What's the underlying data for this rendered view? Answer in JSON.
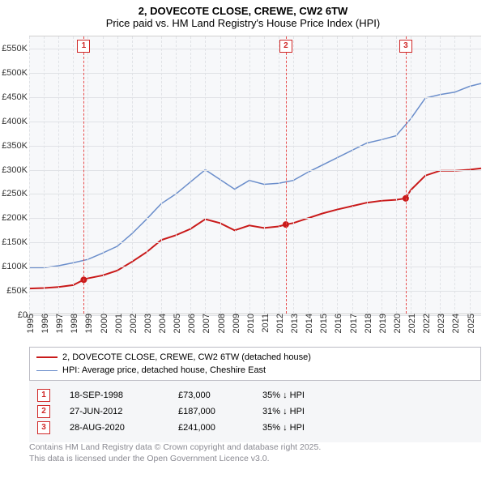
{
  "title_line1": "2, DOVECOTE CLOSE, CREWE, CW2 6TW",
  "title_line2": "Price paid vs. HM Land Registry's House Price Index (HPI)",
  "chart": {
    "type": "line",
    "background_color": "#f7f8fa",
    "grid_color": "#e0e2e6",
    "x_years": [
      1995,
      1996,
      1997,
      1998,
      1999,
      2000,
      2001,
      2002,
      2003,
      2004,
      2005,
      2006,
      2007,
      2008,
      2009,
      2010,
      2011,
      2012,
      2013,
      2014,
      2015,
      2016,
      2017,
      2018,
      2019,
      2020,
      2021,
      2022,
      2023,
      2024,
      2025
    ],
    "x_min": 1995,
    "x_max": 2025.8,
    "y_min": 0,
    "y_max": 575000,
    "y_ticks": [
      0,
      50000,
      100000,
      150000,
      200000,
      250000,
      300000,
      350000,
      400000,
      450000,
      500000,
      550000
    ],
    "y_tick_labels": [
      "£0",
      "£50K",
      "£100K",
      "£150K",
      "£200K",
      "£250K",
      "£300K",
      "£350K",
      "£400K",
      "£450K",
      "£500K",
      "£550K"
    ],
    "series": [
      {
        "name": "price_paid",
        "color": "#c91a1a",
        "width": 2,
        "points": [
          [
            1995,
            55000
          ],
          [
            1996,
            56000
          ],
          [
            1997,
            58000
          ],
          [
            1998,
            62000
          ],
          [
            1998.72,
            73000
          ],
          [
            1999,
            76000
          ],
          [
            2000,
            82000
          ],
          [
            2001,
            92000
          ],
          [
            2002,
            110000
          ],
          [
            2003,
            130000
          ],
          [
            2004,
            155000
          ],
          [
            2005,
            165000
          ],
          [
            2006,
            178000
          ],
          [
            2007,
            198000
          ],
          [
            2008,
            190000
          ],
          [
            2009,
            175000
          ],
          [
            2010,
            185000
          ],
          [
            2011,
            180000
          ],
          [
            2012,
            183000
          ],
          [
            2012.49,
            187000
          ],
          [
            2013,
            190000
          ],
          [
            2014,
            200000
          ],
          [
            2015,
            210000
          ],
          [
            2016,
            218000
          ],
          [
            2017,
            225000
          ],
          [
            2018,
            232000
          ],
          [
            2019,
            236000
          ],
          [
            2020,
            238000
          ],
          [
            2020.66,
            241000
          ],
          [
            2021,
            258000
          ],
          [
            2022,
            288000
          ],
          [
            2023,
            298000
          ],
          [
            2024,
            298000
          ],
          [
            2025,
            300000
          ],
          [
            2025.8,
            303000
          ]
        ]
      },
      {
        "name": "hpi",
        "color": "#6b8ecb",
        "width": 1.5,
        "points": [
          [
            1995,
            98000
          ],
          [
            1996,
            98000
          ],
          [
            1997,
            102000
          ],
          [
            1998,
            108000
          ],
          [
            1999,
            115000
          ],
          [
            2000,
            128000
          ],
          [
            2001,
            142000
          ],
          [
            2002,
            168000
          ],
          [
            2003,
            198000
          ],
          [
            2004,
            230000
          ],
          [
            2005,
            250000
          ],
          [
            2006,
            275000
          ],
          [
            2007,
            300000
          ],
          [
            2008,
            280000
          ],
          [
            2009,
            260000
          ],
          [
            2010,
            278000
          ],
          [
            2011,
            270000
          ],
          [
            2012,
            272000
          ],
          [
            2013,
            278000
          ],
          [
            2014,
            295000
          ],
          [
            2015,
            310000
          ],
          [
            2016,
            325000
          ],
          [
            2017,
            340000
          ],
          [
            2018,
            355000
          ],
          [
            2019,
            362000
          ],
          [
            2020,
            370000
          ],
          [
            2021,
            405000
          ],
          [
            2022,
            448000
          ],
          [
            2023,
            455000
          ],
          [
            2024,
            460000
          ],
          [
            2025,
            472000
          ],
          [
            2025.8,
            478000
          ]
        ]
      }
    ],
    "markers": [
      {
        "n": "1",
        "x": 1998.72,
        "dot_y": 73000
      },
      {
        "n": "2",
        "x": 2012.49,
        "dot_y": 187000
      },
      {
        "n": "3",
        "x": 2020.66,
        "dot_y": 241000
      }
    ]
  },
  "legend": [
    {
      "color": "#c91a1a",
      "width": 2,
      "label": "2, DOVECOTE CLOSE, CREWE, CW2 6TW (detached house)"
    },
    {
      "color": "#6b8ecb",
      "width": 1.5,
      "label": "HPI: Average price, detached house, Cheshire East"
    }
  ],
  "sales": [
    {
      "n": "1",
      "date": "18-SEP-1998",
      "price": "£73,000",
      "diff": "35% ↓ HPI"
    },
    {
      "n": "2",
      "date": "27-JUN-2012",
      "price": "£187,000",
      "diff": "31% ↓ HPI"
    },
    {
      "n": "3",
      "date": "28-AUG-2020",
      "price": "£241,000",
      "diff": "35% ↓ HPI"
    }
  ],
  "footnote_line1": "Contains HM Land Registry data © Crown copyright and database right 2025.",
  "footnote_line2": "This data is licensed under the Open Government Licence v3.0."
}
